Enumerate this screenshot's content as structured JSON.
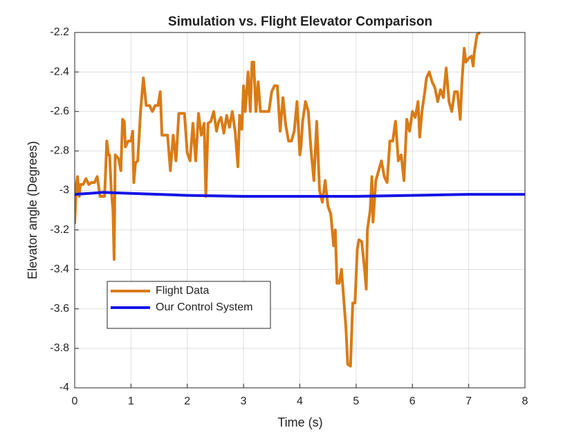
{
  "chart_data": {
    "type": "line",
    "title": "Simulation vs. Flight Elevator Comparison",
    "x_label": "Time (s)",
    "y_label": "Elevator angle (Degrees)",
    "xlim": [
      0,
      8
    ],
    "xticks": [
      0,
      1,
      2,
      3,
      4,
      5,
      6,
      7,
      8
    ],
    "ylim": [
      -4,
      -2.2
    ],
    "yticks": [
      -4,
      -3.8,
      -3.6,
      -3.4,
      -3.2,
      -3,
      -2.8,
      -2.6,
      -2.4,
      -2.2
    ],
    "grid": true,
    "legend_position": "lower left",
    "series": [
      {
        "name": "Flight Data",
        "color": "#d97b16",
        "x": [
          0,
          0.03,
          0.05,
          0.08,
          0.1,
          0.15,
          0.2,
          0.25,
          0.3,
          0.35,
          0.4,
          0.45,
          0.5,
          0.53,
          0.55,
          0.57,
          0.6,
          0.62,
          0.65,
          0.68,
          0.7,
          0.72,
          0.78,
          0.82,
          0.85,
          0.88,
          0.9,
          0.95,
          1.0,
          1.03,
          1.05,
          1.08,
          1.12,
          1.17,
          1.22,
          1.27,
          1.33,
          1.38,
          1.43,
          1.48,
          1.52,
          1.55,
          1.6,
          1.65,
          1.7,
          1.75,
          1.8,
          1.85,
          1.9,
          1.95,
          2.0,
          2.05,
          2.1,
          2.15,
          2.2,
          2.25,
          2.3,
          2.33,
          2.37,
          2.42,
          2.47,
          2.52,
          2.56,
          2.6,
          2.65,
          2.7,
          2.75,
          2.8,
          2.85,
          2.9,
          2.93,
          2.97,
          3.0,
          3.03,
          3.08,
          3.12,
          3.15,
          3.18,
          3.22,
          3.26,
          3.3,
          3.35,
          3.4,
          3.45,
          3.5,
          3.55,
          3.6,
          3.65,
          3.7,
          3.75,
          3.8,
          3.85,
          3.9,
          3.95,
          4.0,
          4.02,
          4.05,
          4.1,
          4.15,
          4.2,
          4.25,
          4.3,
          4.35,
          4.4,
          4.45,
          4.5,
          4.55,
          4.6,
          4.63,
          4.66,
          4.7,
          4.74,
          4.78,
          4.82,
          4.85,
          4.9,
          4.94,
          4.98,
          5.02,
          5.05,
          5.1,
          5.15,
          5.18,
          5.2,
          5.25,
          5.28,
          5.3,
          5.35,
          5.4,
          5.45,
          5.5,
          5.55,
          5.6,
          5.65,
          5.7,
          5.75,
          5.8,
          5.85,
          5.9,
          5.95,
          6.0,
          6.05,
          6.1,
          6.13,
          6.17,
          6.22,
          6.25,
          6.3,
          6.35,
          6.4,
          6.45,
          6.5,
          6.55,
          6.6,
          6.65,
          6.7,
          6.75,
          6.8,
          6.85,
          6.88,
          6.92,
          6.95,
          7.0,
          7.05,
          7.08,
          7.1,
          7.15,
          7.2
        ],
        "values": [
          -3.17,
          -2.97,
          -2.93,
          -3.03,
          -2.97,
          -2.97,
          -2.94,
          -2.97,
          -2.96,
          -2.96,
          -2.93,
          -3.03,
          -3.03,
          -3.03,
          -2.9,
          -2.75,
          -2.82,
          -2.82,
          -3.0,
          -3.1,
          -3.35,
          -2.82,
          -2.84,
          -2.9,
          -2.64,
          -2.65,
          -2.78,
          -2.75,
          -2.75,
          -2.7,
          -2.96,
          -2.86,
          -2.85,
          -2.6,
          -2.43,
          -2.57,
          -2.57,
          -2.6,
          -2.57,
          -2.57,
          -2.5,
          -2.72,
          -2.72,
          -2.72,
          -2.9,
          -2.72,
          -2.85,
          -2.61,
          -2.61,
          -2.61,
          -2.81,
          -2.85,
          -2.66,
          -2.85,
          -2.61,
          -2.72,
          -2.66,
          -3.03,
          -2.66,
          -2.65,
          -2.6,
          -2.7,
          -2.65,
          -2.63,
          -2.71,
          -2.62,
          -2.68,
          -2.6,
          -2.7,
          -2.88,
          -2.62,
          -2.69,
          -2.47,
          -2.6,
          -2.4,
          -2.6,
          -2.35,
          -2.35,
          -2.6,
          -2.45,
          -2.6,
          -2.6,
          -2.6,
          -2.6,
          -2.5,
          -2.47,
          -2.47,
          -2.7,
          -2.53,
          -2.67,
          -2.75,
          -2.75,
          -2.7,
          -2.55,
          -2.82,
          -2.78,
          -2.65,
          -2.55,
          -2.6,
          -2.8,
          -2.95,
          -2.65,
          -3.0,
          -3.06,
          -2.95,
          -3.08,
          -3.12,
          -3.28,
          -3.2,
          -3.47,
          -3.47,
          -3.4,
          -3.55,
          -3.7,
          -3.88,
          -3.89,
          -3.57,
          -3.57,
          -3.3,
          -3.25,
          -3.26,
          -3.4,
          -3.5,
          -3.2,
          -3.1,
          -2.93,
          -3.16,
          -2.95,
          -2.9,
          -2.85,
          -2.93,
          -2.96,
          -2.75,
          -2.75,
          -2.65,
          -2.85,
          -2.82,
          -2.95,
          -2.64,
          -2.7,
          -2.6,
          -2.63,
          -2.55,
          -2.73,
          -2.6,
          -2.5,
          -2.43,
          -2.4,
          -2.45,
          -2.48,
          -2.55,
          -2.49,
          -2.53,
          -2.38,
          -2.55,
          -2.6,
          -2.5,
          -2.5,
          -2.64,
          -2.45,
          -2.28,
          -2.35,
          -2.33,
          -2.32,
          -2.37,
          -2.3,
          -2.21,
          -2.2
        ]
      },
      {
        "name": "Our Control System",
        "color": "#1414e6",
        "x": [
          0,
          0.5,
          1,
          2,
          3,
          4,
          5,
          6,
          7,
          8
        ],
        "values": [
          -3.02,
          -3.01,
          -3.015,
          -3.025,
          -3.03,
          -3.03,
          -3.03,
          -3.025,
          -3.02,
          -3.02
        ]
      }
    ]
  }
}
